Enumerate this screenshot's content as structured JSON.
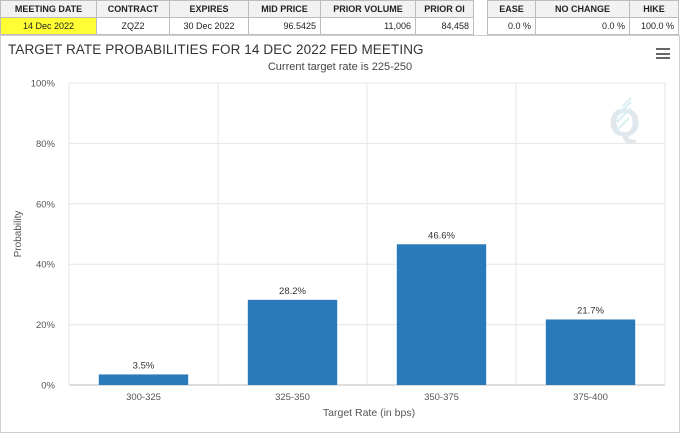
{
  "table_main": {
    "headers": [
      "MEETING DATE",
      "CONTRACT",
      "EXPIRES",
      "MID PRICE",
      "PRIOR VOLUME",
      "PRIOR OI"
    ],
    "row": [
      "14 Dec 2022",
      "ZQZ2",
      "30 Dec 2022",
      "96.5425",
      "11,006",
      "84,458"
    ]
  },
  "table_prob": {
    "headers": [
      "EASE",
      "NO CHANGE",
      "HIKE"
    ],
    "row": [
      "0.0 %",
      "0.0 %",
      "100.0 %"
    ]
  },
  "highlight_color": "#ffff33",
  "chart": {
    "title": "TARGET RATE PROBABILITIES FOR 14 DEC 2022 FED MEETING",
    "subtitle": "Current target rate is 225-250",
    "menu_icon": "hamburger-menu-icon",
    "watermark_icon": "cme-q-watermark-icon"
  },
  "chart_data": {
    "type": "bar",
    "categories": [
      "300-325",
      "325-350",
      "350-375",
      "375-400"
    ],
    "values": [
      3.5,
      28.2,
      46.6,
      21.7
    ],
    "value_labels": [
      "3.5%",
      "28.2%",
      "46.6%",
      "21.7%"
    ],
    "title": "TARGET RATE PROBABILITIES FOR 14 DEC 2022 FED MEETING",
    "subtitle": "Current target rate is 225-250",
    "xlabel": "Target Rate (in bps)",
    "ylabel": "Probability",
    "ylim": [
      0,
      100
    ],
    "yticks": [
      "0%",
      "20%",
      "40%",
      "60%",
      "80%",
      "100%"
    ],
    "ytick_values": [
      0,
      20,
      40,
      60,
      80,
      100
    ],
    "grid": true,
    "legend": "none",
    "bar_color": "#2a7ab9"
  }
}
